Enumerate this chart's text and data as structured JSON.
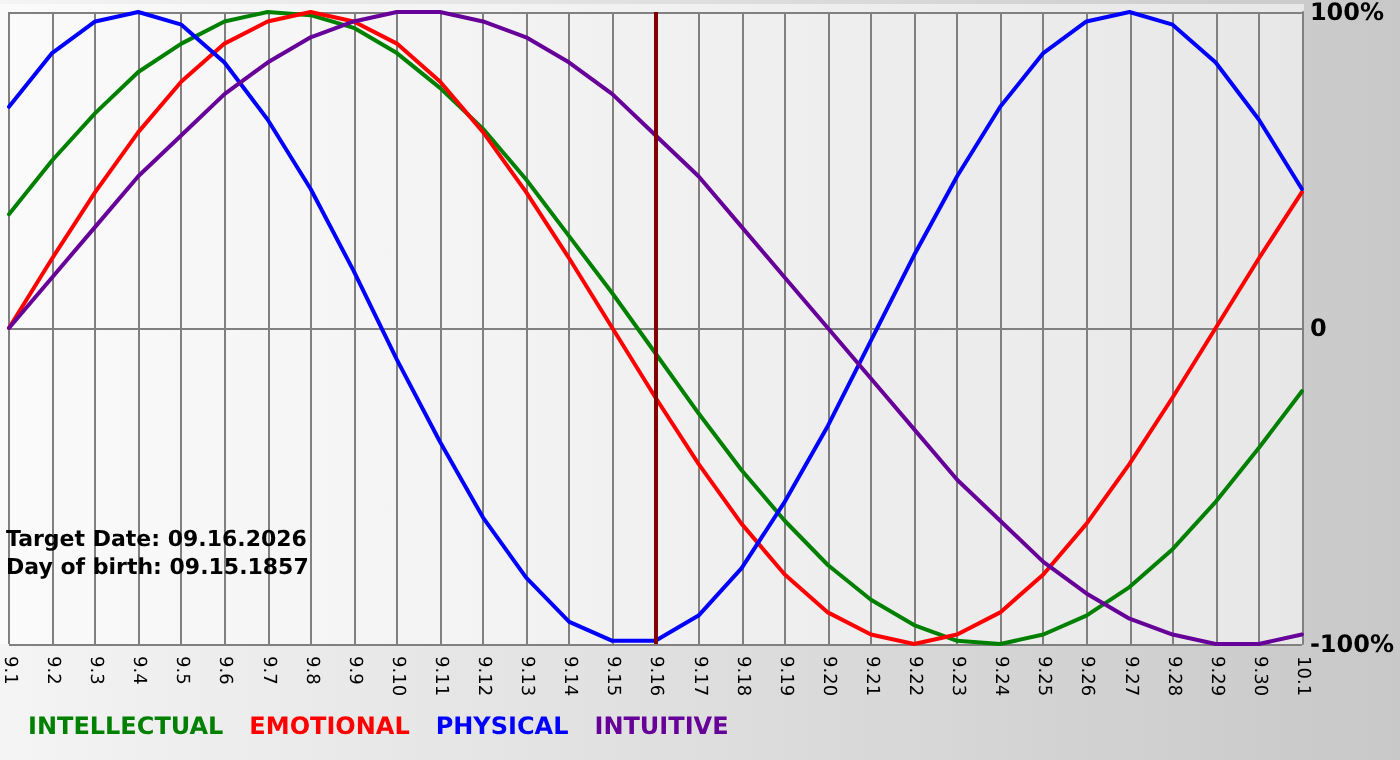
{
  "chart_data": {
    "type": "line",
    "categories": [
      "9.1",
      "9.2",
      "9.3",
      "9.4",
      "9.5",
      "9.6",
      "9.7",
      "9.8",
      "9.9",
      "9.10",
      "9.11",
      "9.12",
      "9.13",
      "9.14",
      "9.15",
      "9.16",
      "9.17",
      "9.18",
      "9.19",
      "9.20",
      "9.21",
      "9.22",
      "9.23",
      "9.24",
      "9.25",
      "9.26",
      "9.27",
      "9.28",
      "9.29",
      "9.30",
      "10.1"
    ],
    "series": [
      {
        "name": "INTELLECTUAL",
        "color": "#008000",
        "values": [
          36,
          53,
          68,
          81,
          90,
          97,
          100,
          99,
          95,
          87,
          76,
          63,
          47,
          29,
          11,
          -8,
          -27,
          -45,
          -61,
          -75,
          -86,
          -94,
          -99,
          -100,
          -97,
          -91,
          -82,
          -70,
          -55,
          -38,
          -20
        ]
      },
      {
        "name": "EMOTIONAL",
        "color": "#ff0000",
        "values": [
          0,
          22,
          43,
          62,
          78,
          90,
          97,
          100,
          97,
          90,
          78,
          62,
          43,
          22,
          0,
          -22,
          -43,
          -62,
          -78,
          -90,
          -97,
          -100,
          -97,
          -90,
          -78,
          -62,
          -43,
          -22,
          0,
          22,
          43
        ]
      },
      {
        "name": "PHYSICAL",
        "color": "#0000ff",
        "values": [
          70,
          87,
          97,
          100,
          96,
          84,
          66,
          44,
          18,
          -10,
          -36,
          -60,
          -79,
          -93,
          -99,
          -99,
          -91,
          -76,
          -55,
          -31,
          -4,
          23,
          48,
          70,
          87,
          97,
          100,
          96,
          84,
          66,
          44
        ]
      },
      {
        "name": "INTUITIVE",
        "color": "#660099",
        "values": [
          0,
          16,
          32,
          48,
          61,
          74,
          84,
          92,
          97,
          100,
          100,
          97,
          92,
          84,
          74,
          61,
          48,
          32,
          16,
          0,
          -16,
          -32,
          -48,
          -61,
          -74,
          -84,
          -92,
          -97,
          -100,
          -100,
          -97
        ]
      }
    ],
    "ylim": [
      -100,
      100
    ],
    "yticks": [
      {
        "value": -100,
        "label": "-100%"
      },
      {
        "value": 0,
        "label": "0"
      },
      {
        "value": 100,
        "label": "100%"
      }
    ],
    "grid": true,
    "legend": "bottom left",
    "marker": "none",
    "line_style": "solid",
    "ref_lines": [
      {
        "axis": "x",
        "value": "9.16",
        "label": null,
        "color": "#800000"
      }
    ],
    "annotations": [
      "Target Date: 09.16.2026",
      "Day of birth: 09.15.1857"
    ]
  }
}
